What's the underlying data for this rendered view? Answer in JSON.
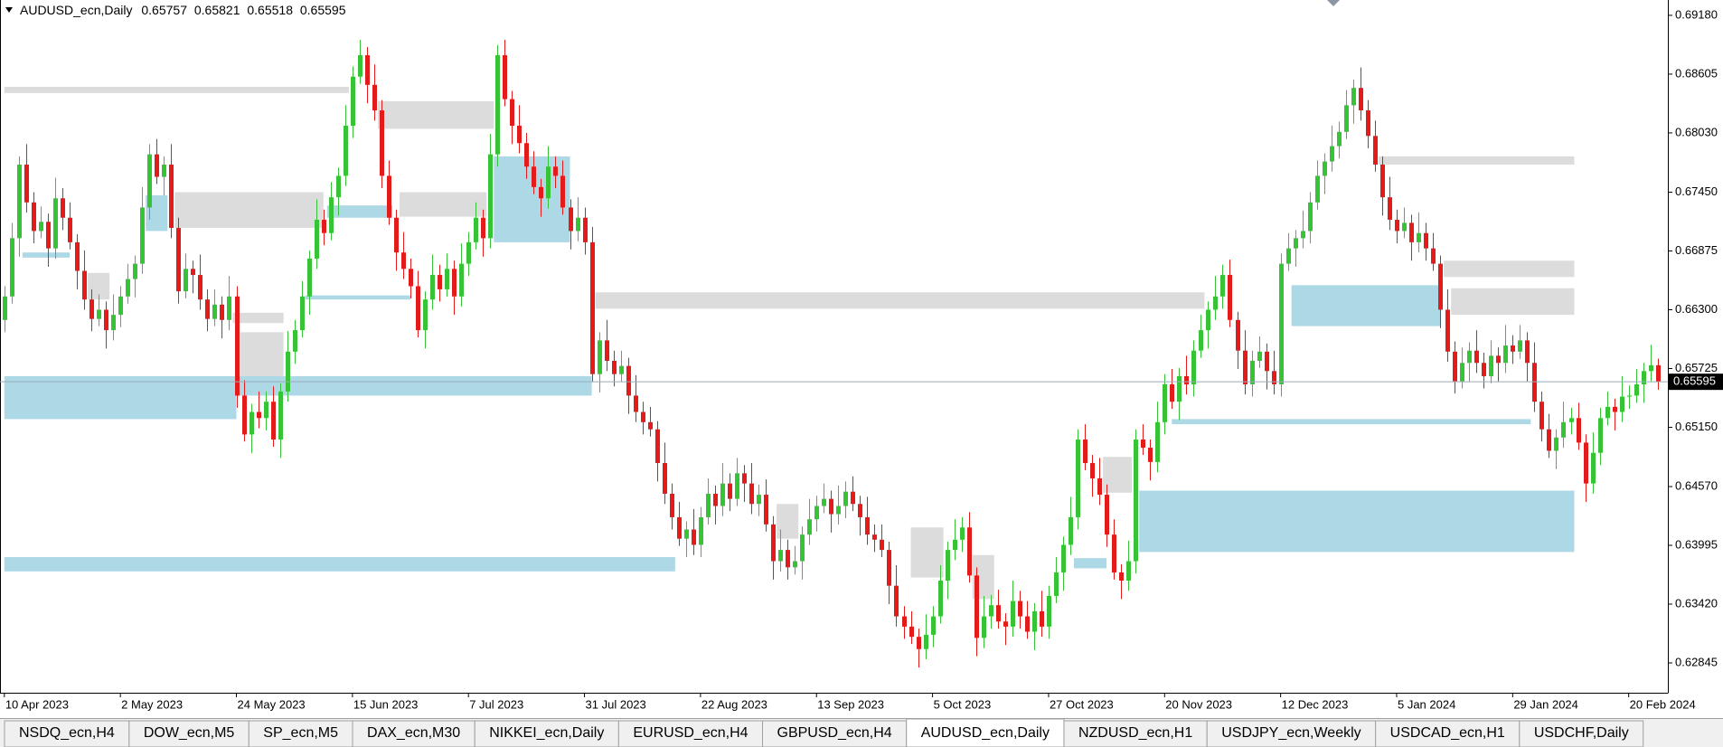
{
  "chart_data": {
    "type": "candlestick",
    "title": "AUDUSD_ecn,Daily",
    "bull_color": "#36c436",
    "bear_color": "#e31b1b",
    "xlim": [
      -0.6,
      229.4
    ],
    "ylim": [
      0.62553,
      0.6933
    ],
    "xticks": [
      {
        "value": 0,
        "label": "10 Apr 2023"
      },
      {
        "value": 16,
        "label": "2 May 2023"
      },
      {
        "value": 32,
        "label": "24 May 2023"
      },
      {
        "value": 48,
        "label": "15 Jun 2023"
      },
      {
        "value": 64,
        "label": "7 Jul 2023"
      },
      {
        "value": 80,
        "label": "31 Jul 2023"
      },
      {
        "value": 96,
        "label": "22 Aug 2023"
      },
      {
        "value": 112,
        "label": "13 Sep 2023"
      },
      {
        "value": 128,
        "label": "5 Oct 2023"
      },
      {
        "value": 144,
        "label": "27 Oct 2023"
      },
      {
        "value": 160,
        "label": "20 Nov 2023"
      },
      {
        "value": 176,
        "label": "12 Dec 2023"
      },
      {
        "value": 192,
        "label": "5 Jan 2024"
      },
      {
        "value": 208,
        "label": "29 Jan 2024"
      },
      {
        "value": 224,
        "label": "20 Feb 2024"
      }
    ],
    "yticks": [
      {
        "value": 0.6918,
        "label": "0.69180"
      },
      0.68605,
      {
        "value": 0.6803,
        "label": "0.68030"
      },
      {
        "value": 0.6745,
        "label": "0.67450"
      },
      0.66875,
      {
        "value": 0.663,
        "label": "0.66300"
      },
      0.65725,
      {
        "value": 0.6515,
        "label": "0.65150"
      },
      {
        "value": 0.6457,
        "label": "0.64570"
      },
      0.63995,
      {
        "value": 0.6342,
        "label": "0.63420"
      },
      0.62845
    ],
    "open": [
      0.662,
      0.6643,
      0.67,
      0.6772,
      0.6735,
      0.6707,
      0.6716,
      0.669,
      0.6739,
      0.672,
      0.6696,
      0.6668,
      0.664,
      0.6621,
      0.663,
      0.661,
      0.6625,
      0.6643,
      0.666,
      0.6675,
      0.673,
      0.6782,
      0.676,
      0.6772,
      0.671,
      0.6648,
      0.667,
      0.6664,
      0.664,
      0.6621,
      0.6635,
      0.662,
      0.6643,
      0.6546,
      0.6508,
      0.653,
      0.6524,
      0.654,
      0.6503,
      0.655,
      0.6589,
      0.661,
      0.6643,
      0.668,
      0.6718,
      0.6705,
      0.674,
      0.6761,
      0.681,
      0.6858,
      0.6879,
      0.685,
      0.6825,
      0.6761,
      0.672,
      0.6686,
      0.667,
      0.6653,
      0.661,
      0.664,
      0.6664,
      0.665,
      0.667,
      0.6643,
      0.6675,
      0.6696,
      0.672,
      0.67,
      0.6782,
      0.6879,
      0.6836,
      0.681,
      0.6793,
      0.677,
      0.675,
      0.6739,
      0.677,
      0.6761,
      0.673,
      0.6707,
      0.672,
      0.6696,
      0.6567,
      0.66,
      0.658,
      0.6567,
      0.6575,
      0.6546,
      0.653,
      0.652,
      0.6513,
      0.648,
      0.645,
      0.6427,
      0.6406,
      0.6415,
      0.64,
      0.6427,
      0.645,
      0.6438,
      0.646,
      0.6445,
      0.647,
      0.646,
      0.644,
      0.6449,
      0.642,
      0.6384,
      0.6395,
      0.6378,
      0.6384,
      0.641,
      0.6425,
      0.6438,
      0.6445,
      0.643,
      0.6438,
      0.6452,
      0.644,
      0.6427,
      0.641,
      0.6405,
      0.6395,
      0.636,
      0.633,
      0.632,
      0.631,
      0.6298,
      0.6312,
      0.633,
      0.6365,
      0.6395,
      0.6405,
      0.6417,
      0.637,
      0.6309,
      0.633,
      0.6341,
      0.6325,
      0.632,
      0.6345,
      0.633,
      0.6315,
      0.6335,
      0.632,
      0.635,
      0.6373,
      0.64,
      0.6427,
      0.6503,
      0.648,
      0.6465,
      0.6449,
      0.641,
      0.6373,
      0.6365,
      0.6384,
      0.6503,
      0.6495,
      0.6481,
      0.652,
      0.6557,
      0.654,
      0.6565,
      0.6557,
      0.659,
      0.661,
      0.663,
      0.6643,
      0.6664,
      0.662,
      0.659,
      0.6557,
      0.658,
      0.6589,
      0.657,
      0.6557,
      0.6675,
      0.669,
      0.67,
      0.6707,
      0.6735,
      0.6761,
      0.6775,
      0.679,
      0.6804,
      0.683,
      0.6847,
      0.6825,
      0.68,
      0.6772,
      0.674,
      0.6718,
      0.6707,
      0.6715,
      0.6696,
      0.6705,
      0.669,
      0.6675,
      0.663,
      0.6589,
      0.656,
      0.6578,
      0.659,
      0.6578,
      0.6565,
      0.6585,
      0.6578,
      0.6595,
      0.6589,
      0.66,
      0.6578,
      0.654,
      0.6513,
      0.6492,
      0.6505,
      0.652,
      0.6524,
      0.65,
      0.646,
      0.649,
      0.6524,
      0.6535,
      0.653,
      0.6545,
      0.6546,
      0.6557,
      0.657,
      0.65757
    ],
    "high": [
      0.6653,
      0.6715,
      0.678,
      0.6792,
      0.6745,
      0.6731,
      0.6724,
      0.6759,
      0.6749,
      0.6735,
      0.6704,
      0.6688,
      0.665,
      0.6645,
      0.6638,
      0.6645,
      0.6653,
      0.6675,
      0.6683,
      0.675,
      0.6792,
      0.6797,
      0.678,
      0.6792,
      0.672,
      0.6685,
      0.6678,
      0.6684,
      0.665,
      0.665,
      0.6643,
      0.6663,
      0.6653,
      0.6561,
      0.6538,
      0.655,
      0.655,
      0.6555,
      0.6558,
      0.6609,
      0.662,
      0.6658,
      0.6688,
      0.6738,
      0.6728,
      0.6755,
      0.6769,
      0.683,
      0.6868,
      0.6894,
      0.6887,
      0.687,
      0.6835,
      0.6776,
      0.6728,
      0.6706,
      0.668,
      0.6668,
      0.6648,
      0.6684,
      0.6674,
      0.6685,
      0.6678,
      0.6695,
      0.6706,
      0.6735,
      0.6728,
      0.6802,
      0.6889,
      0.6894,
      0.6844,
      0.683,
      0.6803,
      0.6785,
      0.6758,
      0.679,
      0.678,
      0.6776,
      0.6738,
      0.674,
      0.673,
      0.6711,
      0.6608,
      0.662,
      0.659,
      0.659,
      0.6583,
      0.6566,
      0.654,
      0.6535,
      0.6521,
      0.65,
      0.646,
      0.6442,
      0.6423,
      0.6435,
      0.6437,
      0.6465,
      0.6458,
      0.648,
      0.647,
      0.6485,
      0.6478,
      0.648,
      0.6459,
      0.6464,
      0.6428,
      0.6415,
      0.6405,
      0.6399,
      0.6418,
      0.6445,
      0.6448,
      0.646,
      0.6453,
      0.6458,
      0.6462,
      0.6467,
      0.6448,
      0.6447,
      0.642,
      0.642,
      0.6403,
      0.638,
      0.634,
      0.6335,
      0.6318,
      0.6332,
      0.634,
      0.638,
      0.6403,
      0.6425,
      0.6427,
      0.6432,
      0.6378,
      0.635,
      0.6351,
      0.6356,
      0.6333,
      0.6365,
      0.6355,
      0.6345,
      0.6343,
      0.6355,
      0.636,
      0.6388,
      0.6408,
      0.6447,
      0.6513,
      0.6518,
      0.6488,
      0.6485,
      0.6459,
      0.6425,
      0.6381,
      0.6404,
      0.6513,
      0.6518,
      0.6503,
      0.654,
      0.6567,
      0.6572,
      0.6573,
      0.6585,
      0.66,
      0.6625,
      0.6638,
      0.6663,
      0.6674,
      0.6679,
      0.6628,
      0.661,
      0.659,
      0.6604,
      0.6597,
      0.659,
      0.6685,
      0.6705,
      0.6708,
      0.6727,
      0.6745,
      0.6776,
      0.6783,
      0.681,
      0.6814,
      0.6845,
      0.6855,
      0.6867,
      0.6835,
      0.6815,
      0.678,
      0.676,
      0.6728,
      0.673,
      0.6723,
      0.6725,
      0.6715,
      0.6705,
      0.6683,
      0.665,
      0.6599,
      0.6593,
      0.6598,
      0.661,
      0.6588,
      0.66,
      0.6593,
      0.6615,
      0.6605,
      0.6615,
      0.6608,
      0.6598,
      0.655,
      0.6528,
      0.6513,
      0.654,
      0.6534,
      0.6539,
      0.6508,
      0.651,
      0.6534,
      0.655,
      0.6543,
      0.6565,
      0.6556,
      0.6572,
      0.6578,
      0.65957,
      0.65821
    ],
    "low": [
      0.6608,
      0.6636,
      0.6682,
      0.6725,
      0.6695,
      0.67,
      0.6672,
      0.668,
      0.6708,
      0.6689,
      0.665,
      0.663,
      0.6609,
      0.6614,
      0.6592,
      0.66,
      0.6613,
      0.6636,
      0.6642,
      0.6665,
      0.6718,
      0.6753,
      0.6742,
      0.67,
      0.6636,
      0.6641,
      0.6646,
      0.663,
      0.6609,
      0.6614,
      0.6602,
      0.661,
      0.6534,
      0.6501,
      0.649,
      0.6514,
      0.6512,
      0.6496,
      0.6485,
      0.654,
      0.6577,
      0.6603,
      0.6625,
      0.667,
      0.6693,
      0.6698,
      0.6722,
      0.6751,
      0.6798,
      0.6851,
      0.6832,
      0.6815,
      0.6749,
      0.6713,
      0.6668,
      0.666,
      0.6641,
      0.6603,
      0.6592,
      0.663,
      0.6638,
      0.6643,
      0.6625,
      0.6633,
      0.6663,
      0.6689,
      0.6682,
      0.669,
      0.677,
      0.6829,
      0.6792,
      0.6783,
      0.6758,
      0.6743,
      0.6721,
      0.6729,
      0.6749,
      0.6723,
      0.6689,
      0.6697,
      0.6684,
      0.656,
      0.6549,
      0.657,
      0.6555,
      0.656,
      0.6528,
      0.652,
      0.6508,
      0.6506,
      0.6462,
      0.644,
      0.6415,
      0.6399,
      0.6388,
      0.639,
      0.6388,
      0.642,
      0.642,
      0.6428,
      0.6433,
      0.6438,
      0.6442,
      0.643,
      0.6428,
      0.6413,
      0.6366,
      0.6374,
      0.6366,
      0.6371,
      0.6366,
      0.64,
      0.6413,
      0.6431,
      0.6412,
      0.642,
      0.6426,
      0.6433,
      0.6409,
      0.64,
      0.6393,
      0.6388,
      0.6342,
      0.632,
      0.6308,
      0.6303,
      0.628,
      0.6288,
      0.63,
      0.6323,
      0.6347,
      0.6385,
      0.6393,
      0.6363,
      0.6291,
      0.6299,
      0.6318,
      0.6318,
      0.6302,
      0.631,
      0.6318,
      0.6308,
      0.6297,
      0.631,
      0.6308,
      0.6343,
      0.6355,
      0.639,
      0.6415,
      0.6473,
      0.6447,
      0.6439,
      0.6398,
      0.6366,
      0.6347,
      0.6355,
      0.6372,
      0.6488,
      0.6463,
      0.6471,
      0.6508,
      0.6533,
      0.6522,
      0.6547,
      0.6545,
      0.6583,
      0.6592,
      0.662,
      0.6631,
      0.6613,
      0.6572,
      0.6547,
      0.6545,
      0.6573,
      0.6552,
      0.6547,
      0.6545,
      0.6668,
      0.6672,
      0.669,
      0.6695,
      0.6728,
      0.6743,
      0.6765,
      0.6778,
      0.6797,
      0.6812,
      0.6815,
      0.6788,
      0.6765,
      0.6722,
      0.6708,
      0.6695,
      0.67,
      0.6678,
      0.6686,
      0.6678,
      0.6668,
      0.6612,
      0.6579,
      0.6548,
      0.6553,
      0.656,
      0.6568,
      0.6553,
      0.6558,
      0.656,
      0.6568,
      0.6577,
      0.6582,
      0.656,
      0.653,
      0.6501,
      0.6485,
      0.6474,
      0.6495,
      0.6508,
      0.6493,
      0.6442,
      0.645,
      0.6478,
      0.6517,
      0.6512,
      0.652,
      0.6533,
      0.6539,
      0.6539,
      0.656,
      0.65518
    ],
    "close": [
      0.6643,
      0.67,
      0.6772,
      0.6735,
      0.6707,
      0.6716,
      0.669,
      0.6739,
      0.672,
      0.6696,
      0.6668,
      0.664,
      0.6621,
      0.663,
      0.661,
      0.6625,
      0.6643,
      0.666,
      0.6675,
      0.673,
      0.6782,
      0.676,
      0.6772,
      0.671,
      0.6648,
      0.667,
      0.6664,
      0.664,
      0.6621,
      0.6635,
      0.662,
      0.6643,
      0.6546,
      0.6508,
      0.653,
      0.6524,
      0.654,
      0.6503,
      0.655,
      0.6589,
      0.661,
      0.6643,
      0.668,
      0.6718,
      0.6705,
      0.674,
      0.6761,
      0.681,
      0.6858,
      0.6879,
      0.685,
      0.6825,
      0.6761,
      0.672,
      0.6686,
      0.667,
      0.6653,
      0.661,
      0.664,
      0.6664,
      0.665,
      0.667,
      0.6643,
      0.6675,
      0.6696,
      0.672,
      0.67,
      0.6782,
      0.6879,
      0.6836,
      0.681,
      0.6793,
      0.677,
      0.675,
      0.6739,
      0.677,
      0.6761,
      0.673,
      0.6707,
      0.672,
      0.6696,
      0.6567,
      0.66,
      0.658,
      0.6567,
      0.6575,
      0.6546,
      0.653,
      0.652,
      0.6513,
      0.648,
      0.645,
      0.6427,
      0.6406,
      0.6415,
      0.64,
      0.6427,
      0.645,
      0.6438,
      0.646,
      0.6445,
      0.647,
      0.646,
      0.644,
      0.6449,
      0.642,
      0.6384,
      0.6395,
      0.6378,
      0.6384,
      0.641,
      0.6425,
      0.6438,
      0.6445,
      0.643,
      0.6438,
      0.6452,
      0.644,
      0.6427,
      0.641,
      0.6405,
      0.6395,
      0.636,
      0.633,
      0.632,
      0.631,
      0.6298,
      0.6312,
      0.633,
      0.6365,
      0.6395,
      0.6405,
      0.6417,
      0.637,
      0.6309,
      0.633,
      0.6341,
      0.6325,
      0.632,
      0.6345,
      0.633,
      0.6315,
      0.6335,
      0.632,
      0.635,
      0.6373,
      0.64,
      0.6427,
      0.6503,
      0.648,
      0.6465,
      0.6449,
      0.641,
      0.6373,
      0.6365,
      0.6384,
      0.6503,
      0.6495,
      0.6481,
      0.652,
      0.6557,
      0.654,
      0.6565,
      0.6557,
      0.659,
      0.661,
      0.663,
      0.6643,
      0.6664,
      0.662,
      0.659,
      0.6557,
      0.658,
      0.6589,
      0.657,
      0.6557,
      0.6675,
      0.669,
      0.67,
      0.6707,
      0.6735,
      0.6761,
      0.6775,
      0.679,
      0.6804,
      0.683,
      0.6847,
      0.6825,
      0.68,
      0.6772,
      0.674,
      0.6718,
      0.6707,
      0.6715,
      0.6696,
      0.6705,
      0.669,
      0.6675,
      0.663,
      0.6589,
      0.656,
      0.6578,
      0.659,
      0.6578,
      0.6565,
      0.6585,
      0.6578,
      0.6595,
      0.6589,
      0.66,
      0.6578,
      0.654,
      0.6513,
      0.6492,
      0.6505,
      0.652,
      0.6524,
      0.65,
      0.646,
      0.649,
      0.6524,
      0.6535,
      0.653,
      0.6545,
      0.6546,
      0.6557,
      0.657,
      0.65757,
      0.65595
    ],
    "zones": [
      {
        "color": "#dcdcdc",
        "x": [
          0,
          47.5
        ],
        "y": [
          0.6842,
          0.6848
        ]
      },
      {
        "color": "#dcdcdc",
        "x": [
          51.5,
          67.5
        ],
        "y": [
          0.6807,
          0.6834
        ]
      },
      {
        "color": "#dcdcdc",
        "x": [
          23.5,
          44
        ],
        "y": [
          0.671,
          0.6745
        ]
      },
      {
        "color": "#dcdcdc",
        "x": [
          54.5,
          66.5
        ],
        "y": [
          0.6721,
          0.6745
        ]
      },
      {
        "color": "#dcdcdc",
        "x": [
          11.5,
          14.5
        ],
        "y": [
          0.664,
          0.6666
        ]
      },
      {
        "color": "#dcdcdc",
        "x": [
          31.5,
          38.5
        ],
        "y": [
          0.6617,
          0.6627
        ]
      },
      {
        "color": "#dcdcdc",
        "x": [
          32.5,
          38.5
        ],
        "y": [
          0.6562,
          0.6608
        ]
      },
      {
        "color": "#dcdcdc",
        "x": [
          81.5,
          165.5
        ],
        "y": [
          0.6631,
          0.6647
        ]
      },
      {
        "color": "#dcdcdc",
        "x": [
          189.5,
          216.5
        ],
        "y": [
          0.6772,
          0.678
        ]
      },
      {
        "color": "#dcdcdc",
        "x": [
          198.5,
          216.5
        ],
        "y": [
          0.6662,
          0.6678
        ]
      },
      {
        "color": "#dcdcdc",
        "x": [
          199.5,
          216.5
        ],
        "y": [
          0.6625,
          0.6651
        ]
      },
      {
        "color": "#dcdcdc",
        "x": [
          151.5,
          155.5
        ],
        "y": [
          0.6451,
          0.6486
        ]
      },
      {
        "color": "#dcdcdc",
        "x": [
          106.5,
          109.5
        ],
        "y": [
          0.6406,
          0.644
        ]
      },
      {
        "color": "#dcdcdc",
        "x": [
          125,
          129.5
        ],
        "y": [
          0.6368,
          0.6417
        ]
      },
      {
        "color": "#dcdcdc",
        "x": [
          133.5,
          136.5
        ],
        "y": [
          0.6347,
          0.639
        ]
      },
      {
        "color": "#add8e6",
        "x": [
          0,
          32
        ],
        "y": [
          0.6523,
          0.6565
        ]
      },
      {
        "color": "#add8e6",
        "x": [
          32,
          81
        ],
        "y": [
          0.6546,
          0.6565
        ]
      },
      {
        "color": "#add8e6",
        "x": [
          0,
          92.5
        ],
        "y": [
          0.6374,
          0.6388
        ]
      },
      {
        "color": "#add8e6",
        "x": [
          67.5,
          78
        ],
        "y": [
          0.6696,
          0.678
        ]
      },
      {
        "color": "#add8e6",
        "x": [
          44.5,
          53.5
        ],
        "y": [
          0.672,
          0.6732
        ]
      },
      {
        "color": "#add8e6",
        "x": [
          41.5,
          56
        ],
        "y": [
          0.664,
          0.6644
        ]
      },
      {
        "color": "#add8e6",
        "x": [
          156.5,
          216.5
        ],
        "y": [
          0.6393,
          0.6453
        ]
      },
      {
        "color": "#add8e6",
        "x": [
          177.5,
          198
        ],
        "y": [
          0.6614,
          0.6654
        ]
      },
      {
        "color": "#add8e6",
        "x": [
          161,
          210.5
        ],
        "y": [
          0.6518,
          0.6523
        ]
      },
      {
        "color": "#add8e6",
        "x": [
          147.5,
          152
        ],
        "y": [
          0.6377,
          0.6387
        ]
      },
      {
        "color": "#add8e6",
        "x": [
          19.5,
          22.5
        ],
        "y": [
          0.6707,
          0.6742
        ]
      },
      {
        "color": "#add8e6",
        "x": [
          2.5,
          9
        ],
        "y": [
          0.6681,
          0.6686
        ]
      }
    ]
  },
  "tabs": [
    "NSDQ_ecn,H4",
    "DOW_ecn,M5",
    "SP_ecn,M5",
    "DAX_ecn,M30",
    "NIKKEI_ecn,Daily",
    "EURUSD_ecn,H4",
    "GBPUSD_ecn,H4",
    "AUDUSD_ecn,Daily",
    "NZDUSD_ecn,H1",
    "USDJPY_ecn,Weekly",
    "USDCAD_ecn,H1",
    "USDCHF,Daily"
  ],
  "active_tab": 7
}
